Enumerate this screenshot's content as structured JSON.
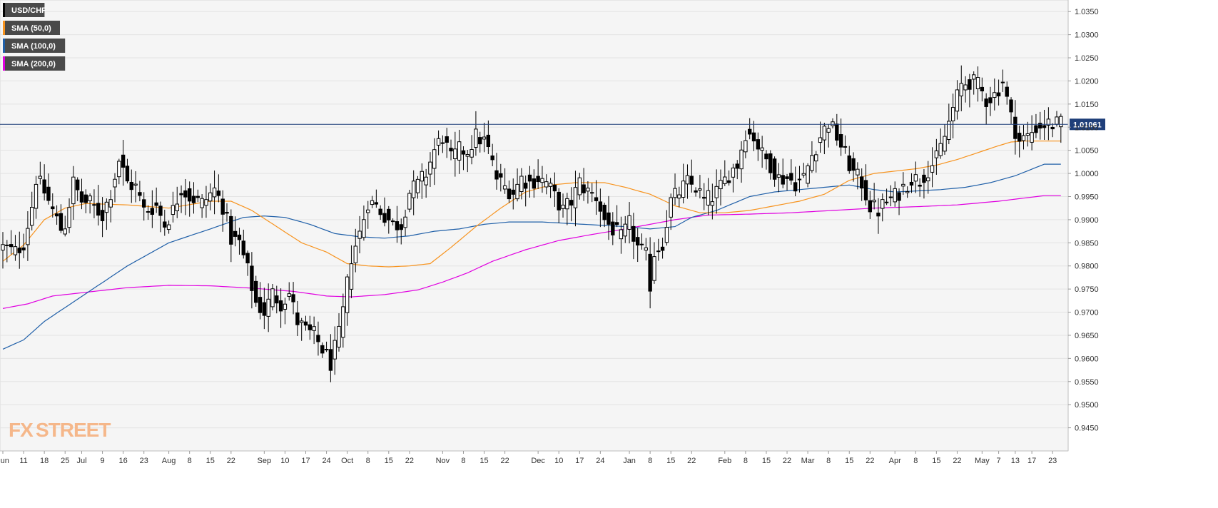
{
  "chart_data": {
    "type": "candlestick",
    "symbol": "USD/CHF",
    "y_range": [
      0.94,
      1.0375
    ],
    "y_ticks": [
      "1.0350",
      "1.0300",
      "1.0250",
      "1.0200",
      "1.0150",
      "1.0100",
      "1.0050",
      "1.0000",
      "0.9950",
      "0.9900",
      "0.9850",
      "0.9800",
      "0.9750",
      "0.9700",
      "0.9650",
      "0.9600",
      "0.9550",
      "0.9500",
      "0.9450"
    ],
    "x_ticks": [
      {
        "label": "Jun",
        "i": 0
      },
      {
        "label": "11",
        "i": 5
      },
      {
        "label": "18",
        "i": 10
      },
      {
        "label": "25",
        "i": 15
      },
      {
        "label": "Jul",
        "i": 19
      },
      {
        "label": "9",
        "i": 24
      },
      {
        "label": "16",
        "i": 29
      },
      {
        "label": "23",
        "i": 34
      },
      {
        "label": "Aug",
        "i": 40
      },
      {
        "label": "8",
        "i": 45
      },
      {
        "label": "15",
        "i": 50
      },
      {
        "label": "22",
        "i": 55
      },
      {
        "label": "Sep",
        "i": 63
      },
      {
        "label": "10",
        "i": 68
      },
      {
        "label": "17",
        "i": 73
      },
      {
        "label": "24",
        "i": 78
      },
      {
        "label": "Oct",
        "i": 83
      },
      {
        "label": "8",
        "i": 88
      },
      {
        "label": "15",
        "i": 93
      },
      {
        "label": "22",
        "i": 98
      },
      {
        "label": "Nov",
        "i": 106
      },
      {
        "label": "8",
        "i": 111
      },
      {
        "label": "15",
        "i": 116
      },
      {
        "label": "22",
        "i": 121
      },
      {
        "label": "Dec",
        "i": 129
      },
      {
        "label": "10",
        "i": 134
      },
      {
        "label": "17",
        "i": 139
      },
      {
        "label": "24",
        "i": 144
      },
      {
        "label": "Jan",
        "i": 151
      },
      {
        "label": "8",
        "i": 156
      },
      {
        "label": "15",
        "i": 161
      },
      {
        "label": "22",
        "i": 166
      },
      {
        "label": "Feb",
        "i": 174
      },
      {
        "label": "8",
        "i": 179
      },
      {
        "label": "15",
        "i": 184
      },
      {
        "label": "22",
        "i": 189
      },
      {
        "label": "Mar",
        "i": 194
      },
      {
        "label": "8",
        "i": 199
      },
      {
        "label": "15",
        "i": 204
      },
      {
        "label": "22",
        "i": 209
      },
      {
        "label": "Apr",
        "i": 215
      },
      {
        "label": "8",
        "i": 220
      },
      {
        "label": "15",
        "i": 225
      },
      {
        "label": "22",
        "i": 230
      },
      {
        "label": "May",
        "i": 236
      },
      {
        "label": "7",
        "i": 240
      },
      {
        "label": "13",
        "i": 244
      },
      {
        "label": "17",
        "i": 248
      },
      {
        "label": "23",
        "i": 253
      }
    ],
    "last_price": 1.01061,
    "last_price_label": "1.01061",
    "legend": [
      {
        "label": "USD/CHF",
        "color": "#000000"
      },
      {
        "label": "SMA (50,0)",
        "color": "#f7931e"
      },
      {
        "label": "SMA (100,0)",
        "color": "#1f5fa8"
      },
      {
        "label": "SMA (200,0)",
        "color": "#e000e0"
      }
    ],
    "close_anchors": [
      [
        0,
        0.984
      ],
      [
        3,
        0.983
      ],
      [
        5,
        0.985
      ],
      [
        7,
        0.993
      ],
      [
        8,
        0.999
      ],
      [
        10,
        0.996
      ],
      [
        12,
        0.992
      ],
      [
        14,
        0.988
      ],
      [
        15,
        0.989
      ],
      [
        17,
        0.998
      ],
      [
        19,
        0.994
      ],
      [
        21,
        0.9935
      ],
      [
        24,
        0.991
      ],
      [
        26,
        0.996
      ],
      [
        28,
        1.003
      ],
      [
        30,
        0.998
      ],
      [
        32,
        0.997
      ],
      [
        34,
        0.992
      ],
      [
        37,
        0.993
      ],
      [
        39,
        0.989
      ],
      [
        41,
        0.992
      ],
      [
        43,
        0.997
      ],
      [
        45,
        0.995
      ],
      [
        48,
        0.9935
      ],
      [
        51,
        0.9965
      ],
      [
        53,
        0.993
      ],
      [
        55,
        0.986
      ],
      [
        57,
        0.985
      ],
      [
        59,
        0.979
      ],
      [
        61,
        0.972
      ],
      [
        63,
        0.97
      ],
      [
        65,
        0.974
      ],
      [
        67,
        0.972
      ],
      [
        69,
        0.974
      ],
      [
        71,
        0.968
      ],
      [
        73,
        0.966
      ],
      [
        75,
        0.965
      ],
      [
        77,
        0.962
      ],
      [
        79,
        0.959
      ],
      [
        81,
        0.965
      ],
      [
        82,
        0.97
      ],
      [
        84,
        0.982
      ],
      [
        86,
        0.987
      ],
      [
        88,
        0.994
      ],
      [
        90,
        0.993
      ],
      [
        92,
        0.991
      ],
      [
        94,
        0.989
      ],
      [
        96,
        0.989
      ],
      [
        98,
        0.996
      ],
      [
        100,
        0.9975
      ],
      [
        102,
        1.0
      ],
      [
        104,
        1.005
      ],
      [
        106,
        1.008
      ],
      [
        108,
        1.003
      ],
      [
        110,
        1.005
      ],
      [
        112,
        1.005
      ],
      [
        114,
        1.008
      ],
      [
        116,
        1.007
      ],
      [
        117,
        1.005
      ],
      [
        119,
        0.999
      ],
      [
        121,
        0.997
      ],
      [
        123,
        0.996
      ],
      [
        125,
        0.999
      ],
      [
        127,
        0.998
      ],
      [
        129,
        0.999
      ],
      [
        131,
        0.998
      ],
      [
        133,
        0.995
      ],
      [
        135,
        0.992
      ],
      [
        137,
        0.994
      ],
      [
        139,
        0.998
      ],
      [
        141,
        0.996
      ],
      [
        143,
        0.995
      ],
      [
        145,
        0.99
      ],
      [
        147,
        0.988
      ],
      [
        149,
        0.986
      ],
      [
        151,
        0.989
      ],
      [
        153,
        0.984
      ],
      [
        155,
        0.982
      ],
      [
        156,
        0.976
      ],
      [
        157,
        0.983
      ],
      [
        159,
        0.985
      ],
      [
        161,
        0.994
      ],
      [
        163,
        0.996
      ],
      [
        165,
        0.998
      ],
      [
        167,
        0.997
      ],
      [
        169,
        0.994
      ],
      [
        171,
        0.995
      ],
      [
        173,
        0.997
      ],
      [
        175,
        1.0
      ],
      [
        177,
        1.002
      ],
      [
        179,
        1.009
      ],
      [
        181,
        1.008
      ],
      [
        183,
        1.004
      ],
      [
        185,
        1.002
      ],
      [
        187,
        0.999
      ],
      [
        189,
        0.999
      ],
      [
        191,
        0.998
      ],
      [
        193,
        0.999
      ],
      [
        195,
        1.004
      ],
      [
        197,
        1.008
      ],
      [
        199,
        1.011
      ],
      [
        201,
        1.008
      ],
      [
        203,
        1.004
      ],
      [
        205,
        1.0
      ],
      [
        207,
        0.998
      ],
      [
        209,
        0.993
      ],
      [
        211,
        0.992
      ],
      [
        213,
        0.994
      ],
      [
        215,
        0.995
      ],
      [
        217,
        0.997
      ],
      [
        219,
        0.999
      ],
      [
        221,
        0.9985
      ],
      [
        223,
        1.001
      ],
      [
        225,
        1.003
      ],
      [
        227,
        1.008
      ],
      [
        229,
        1.014
      ],
      [
        231,
        1.019
      ],
      [
        233,
        1.02
      ],
      [
        235,
        1.019
      ],
      [
        237,
        1.016
      ],
      [
        239,
        1.017
      ],
      [
        241,
        1.02
      ],
      [
        243,
        1.012
      ],
      [
        245,
        1.007
      ],
      [
        247,
        1.008
      ],
      [
        249,
        1.01
      ],
      [
        251,
        1.0106
      ]
    ],
    "sma50_anchors": [
      [
        0,
        0.981
      ],
      [
        5,
        0.9845
      ],
      [
        10,
        0.99
      ],
      [
        15,
        0.9925
      ],
      [
        20,
        0.9935
      ],
      [
        30,
        0.9932
      ],
      [
        40,
        0.9925
      ],
      [
        50,
        0.994
      ],
      [
        55,
        0.994
      ],
      [
        60,
        0.992
      ],
      [
        66,
        0.9885
      ],
      [
        72,
        0.985
      ],
      [
        78,
        0.983
      ],
      [
        83,
        0.9805
      ],
      [
        88,
        0.98
      ],
      [
        93,
        0.9798
      ],
      [
        98,
        0.98
      ],
      [
        103,
        0.9805
      ],
      [
        108,
        0.984
      ],
      [
        114,
        0.9885
      ],
      [
        120,
        0.9925
      ],
      [
        126,
        0.996
      ],
      [
        132,
        0.9975
      ],
      [
        138,
        0.998
      ],
      [
        145,
        0.998
      ],
      [
        150,
        0.997
      ],
      [
        156,
        0.9955
      ],
      [
        162,
        0.993
      ],
      [
        168,
        0.9915
      ],
      [
        174,
        0.9915
      ],
      [
        180,
        0.992
      ],
      [
        186,
        0.993
      ],
      [
        192,
        0.994
      ],
      [
        198,
        0.9955
      ],
      [
        204,
        0.9985
      ],
      [
        210,
        1.0
      ],
      [
        215,
        1.0005
      ],
      [
        220,
        1.001
      ],
      [
        225,
        1.0018
      ],
      [
        230,
        1.003
      ],
      [
        235,
        1.0045
      ],
      [
        240,
        1.006
      ],
      [
        243,
        1.0068
      ],
      [
        246,
        1.007
      ],
      [
        251,
        1.007
      ]
    ],
    "sma100_anchors": [
      [
        0,
        0.962
      ],
      [
        5,
        0.964
      ],
      [
        10,
        0.968
      ],
      [
        20,
        0.974
      ],
      [
        30,
        0.98
      ],
      [
        40,
        0.985
      ],
      [
        50,
        0.988
      ],
      [
        58,
        0.9905
      ],
      [
        63,
        0.9908
      ],
      [
        68,
        0.9905
      ],
      [
        74,
        0.989
      ],
      [
        80,
        0.987
      ],
      [
        86,
        0.9863
      ],
      [
        92,
        0.986
      ],
      [
        98,
        0.9865
      ],
      [
        104,
        0.9875
      ],
      [
        110,
        0.988
      ],
      [
        116,
        0.989
      ],
      [
        122,
        0.9895
      ],
      [
        130,
        0.9895
      ],
      [
        140,
        0.989
      ],
      [
        150,
        0.9885
      ],
      [
        156,
        0.988
      ],
      [
        162,
        0.9885
      ],
      [
        166,
        0.9905
      ],
      [
        172,
        0.992
      ],
      [
        180,
        0.995
      ],
      [
        186,
        0.996
      ],
      [
        192,
        0.9965
      ],
      [
        198,
        0.997
      ],
      [
        204,
        0.9975
      ],
      [
        210,
        0.9965
      ],
      [
        215,
        0.996
      ],
      [
        220,
        0.9962
      ],
      [
        226,
        0.9965
      ],
      [
        232,
        0.997
      ],
      [
        238,
        0.998
      ],
      [
        244,
        0.9995
      ],
      [
        251,
        1.002
      ]
    ],
    "sma200_anchors": [
      [
        0,
        0.9708
      ],
      [
        6,
        0.9718
      ],
      [
        12,
        0.9735
      ],
      [
        20,
        0.9743
      ],
      [
        30,
        0.9753
      ],
      [
        40,
        0.9758
      ],
      [
        50,
        0.9757
      ],
      [
        60,
        0.9752
      ],
      [
        70,
        0.9745
      ],
      [
        78,
        0.9735
      ],
      [
        84,
        0.9733
      ],
      [
        92,
        0.9738
      ],
      [
        100,
        0.9748
      ],
      [
        106,
        0.9765
      ],
      [
        112,
        0.9785
      ],
      [
        118,
        0.981
      ],
      [
        126,
        0.9835
      ],
      [
        134,
        0.9855
      ],
      [
        142,
        0.9868
      ],
      [
        150,
        0.988
      ],
      [
        156,
        0.989
      ],
      [
        162,
        0.99
      ],
      [
        170,
        0.991
      ],
      [
        180,
        0.9912
      ],
      [
        190,
        0.9915
      ],
      [
        200,
        0.992
      ],
      [
        210,
        0.9925
      ],
      [
        220,
        0.9928
      ],
      [
        230,
        0.9932
      ],
      [
        240,
        0.994
      ],
      [
        251,
        0.9952
      ]
    ],
    "watermark": {
      "part1": "FX",
      "part2": "STREET"
    }
  }
}
